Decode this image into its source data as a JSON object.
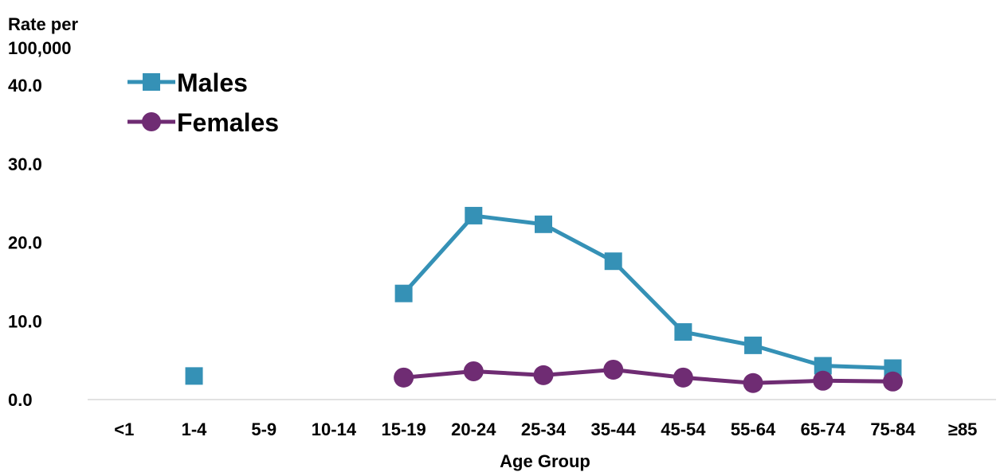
{
  "chart_data": {
    "type": "line",
    "ylabel_line1": "Rate per",
    "ylabel_line2": "100,000",
    "xlabel": "Age Group",
    "ylim": [
      0,
      40
    ],
    "yticks": [
      "0.0",
      "10.0",
      "20.0",
      "30.0",
      "40.0"
    ],
    "ytick_values": [
      0,
      10,
      20,
      30,
      40
    ],
    "grid": false,
    "legend_position": "top-left",
    "categories": [
      "<1",
      "1-4",
      "5-9",
      "10-14",
      "15-19",
      "20-24",
      "25-34",
      "35-44",
      "45-54",
      "55-64",
      "65-74",
      "75-84",
      "≥85"
    ],
    "series": [
      {
        "name": "Males",
        "color": "#3591B6",
        "marker": "square",
        "values": [
          null,
          3.0,
          null,
          null,
          13.5,
          23.4,
          22.3,
          17.6,
          8.6,
          6.9,
          4.3,
          4.0,
          null
        ]
      },
      {
        "name": "Females",
        "color": "#6F2C73",
        "marker": "circle",
        "values": [
          null,
          null,
          null,
          null,
          2.8,
          3.6,
          3.1,
          3.8,
          2.8,
          2.1,
          2.4,
          2.3,
          null
        ]
      }
    ]
  }
}
